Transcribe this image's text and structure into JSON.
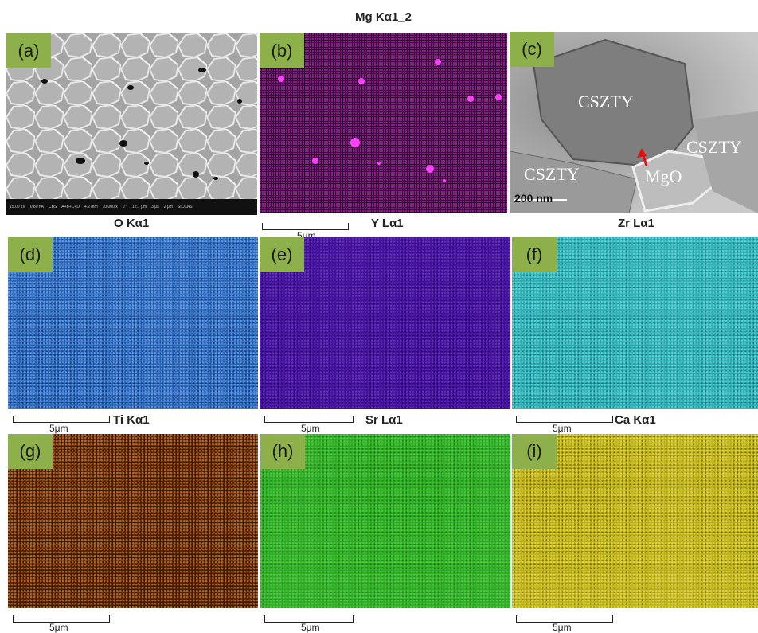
{
  "header": {
    "title": "Mg Kα1_2"
  },
  "panels": {
    "a": {
      "tag": "(a)",
      "sem_databar": [
        "HV",
        "curr",
        "det",
        "mode",
        "WD",
        "mag",
        "tilt",
        "HFW",
        "dwell",
        "2 μm"
      ],
      "sem_values": [
        "15.00 kV",
        "0.80 nA",
        "CBS",
        "A+B+C+D",
        "4.2 mm",
        "10 000 x",
        "0 °",
        "12.7 μm",
        "3 μs",
        "SICCAS"
      ]
    },
    "b": {
      "tag": "(b)",
      "scale": "5μm"
    },
    "c": {
      "tag": "(c)",
      "labels": [
        "CSZTY",
        "CSZTY",
        "CSZTY",
        "MgO"
      ],
      "scale": "200 nm"
    },
    "d": {
      "tag": "(d)",
      "element": "O Kα1",
      "scale": "5μm"
    },
    "e": {
      "tag": "(e)",
      "element": "Y Lα1"
    },
    "f": {
      "tag": "(f)",
      "element": "Zr Lα1",
      "scale": "5μm"
    },
    "g": {
      "tag": "(g)",
      "element": "Ti Kα1",
      "scale": "5μm"
    },
    "h": {
      "tag": "(h)",
      "element": "Sr Lα1",
      "scale": "5μm"
    },
    "i": {
      "tag": "(i)",
      "element": "Ca Kα1",
      "scale": "5μm"
    }
  },
  "colors": {
    "tag_bg": "#8db04a",
    "mg": "#e030e0",
    "o": "#2a5fae",
    "y": "#45119a",
    "zr": "#2aa8ae",
    "ti": "#d06a1e",
    "sr": "#2fa52b",
    "ca": "#b8ab20",
    "arrow": "#e01010"
  }
}
